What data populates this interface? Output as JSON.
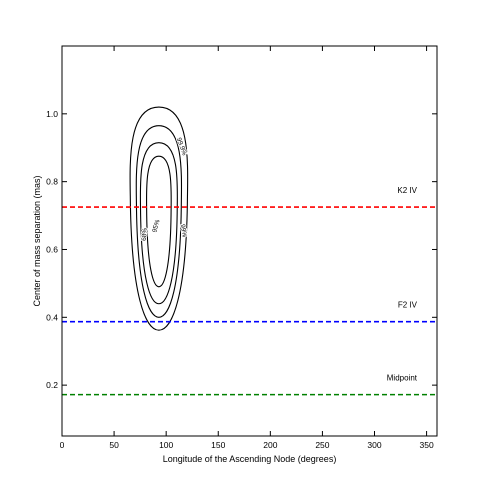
{
  "chart_data": {
    "type": "line",
    "title": "",
    "xlabel": "Longitude of the Ascending Node (degrees)",
    "ylabel": "Center of mass separation (mas)",
    "xlim": [
      0,
      360
    ],
    "ylim": [
      0.05,
      1.2
    ],
    "xticks": [
      0,
      50,
      100,
      150,
      200,
      250,
      300,
      350
    ],
    "yticks": [
      0.2,
      0.4,
      0.6,
      0.8,
      1.0
    ],
    "xtick_labels": [
      "0",
      "50",
      "100",
      "150",
      "200",
      "250",
      "300",
      "350"
    ],
    "ytick_labels": [
      "0.2",
      "0.4",
      "0.6",
      "0.8",
      "1.0"
    ],
    "grid": false,
    "reference_lines": [
      {
        "label": "K2 IV",
        "y": 0.725,
        "color": "#ff0000",
        "style": "dashed"
      },
      {
        "label": "F2 IV",
        "y": 0.387,
        "color": "#0000ff",
        "style": "dashed"
      },
      {
        "label": "Midpoint",
        "y": 0.172,
        "color": "#008000",
        "style": "dashed"
      }
    ],
    "contours": [
      {
        "label": "99.9%",
        "center": [
          93,
          0.69
        ],
        "x_half_width": 28,
        "y_min": 0.362,
        "y_max": 1.02
      },
      {
        "label": "99%",
        "center": [
          93,
          0.69
        ],
        "x_half_width": 22,
        "y_min": 0.4,
        "y_max": 0.965
      },
      {
        "label": "95%",
        "center": [
          93,
          0.69
        ],
        "x_half_width": 18,
        "y_min": 0.44,
        "y_max": 0.915
      },
      {
        "label": "68%",
        "center": [
          93,
          0.69
        ],
        "x_half_width": 12,
        "y_min": 0.49,
        "y_max": 0.875
      }
    ]
  }
}
